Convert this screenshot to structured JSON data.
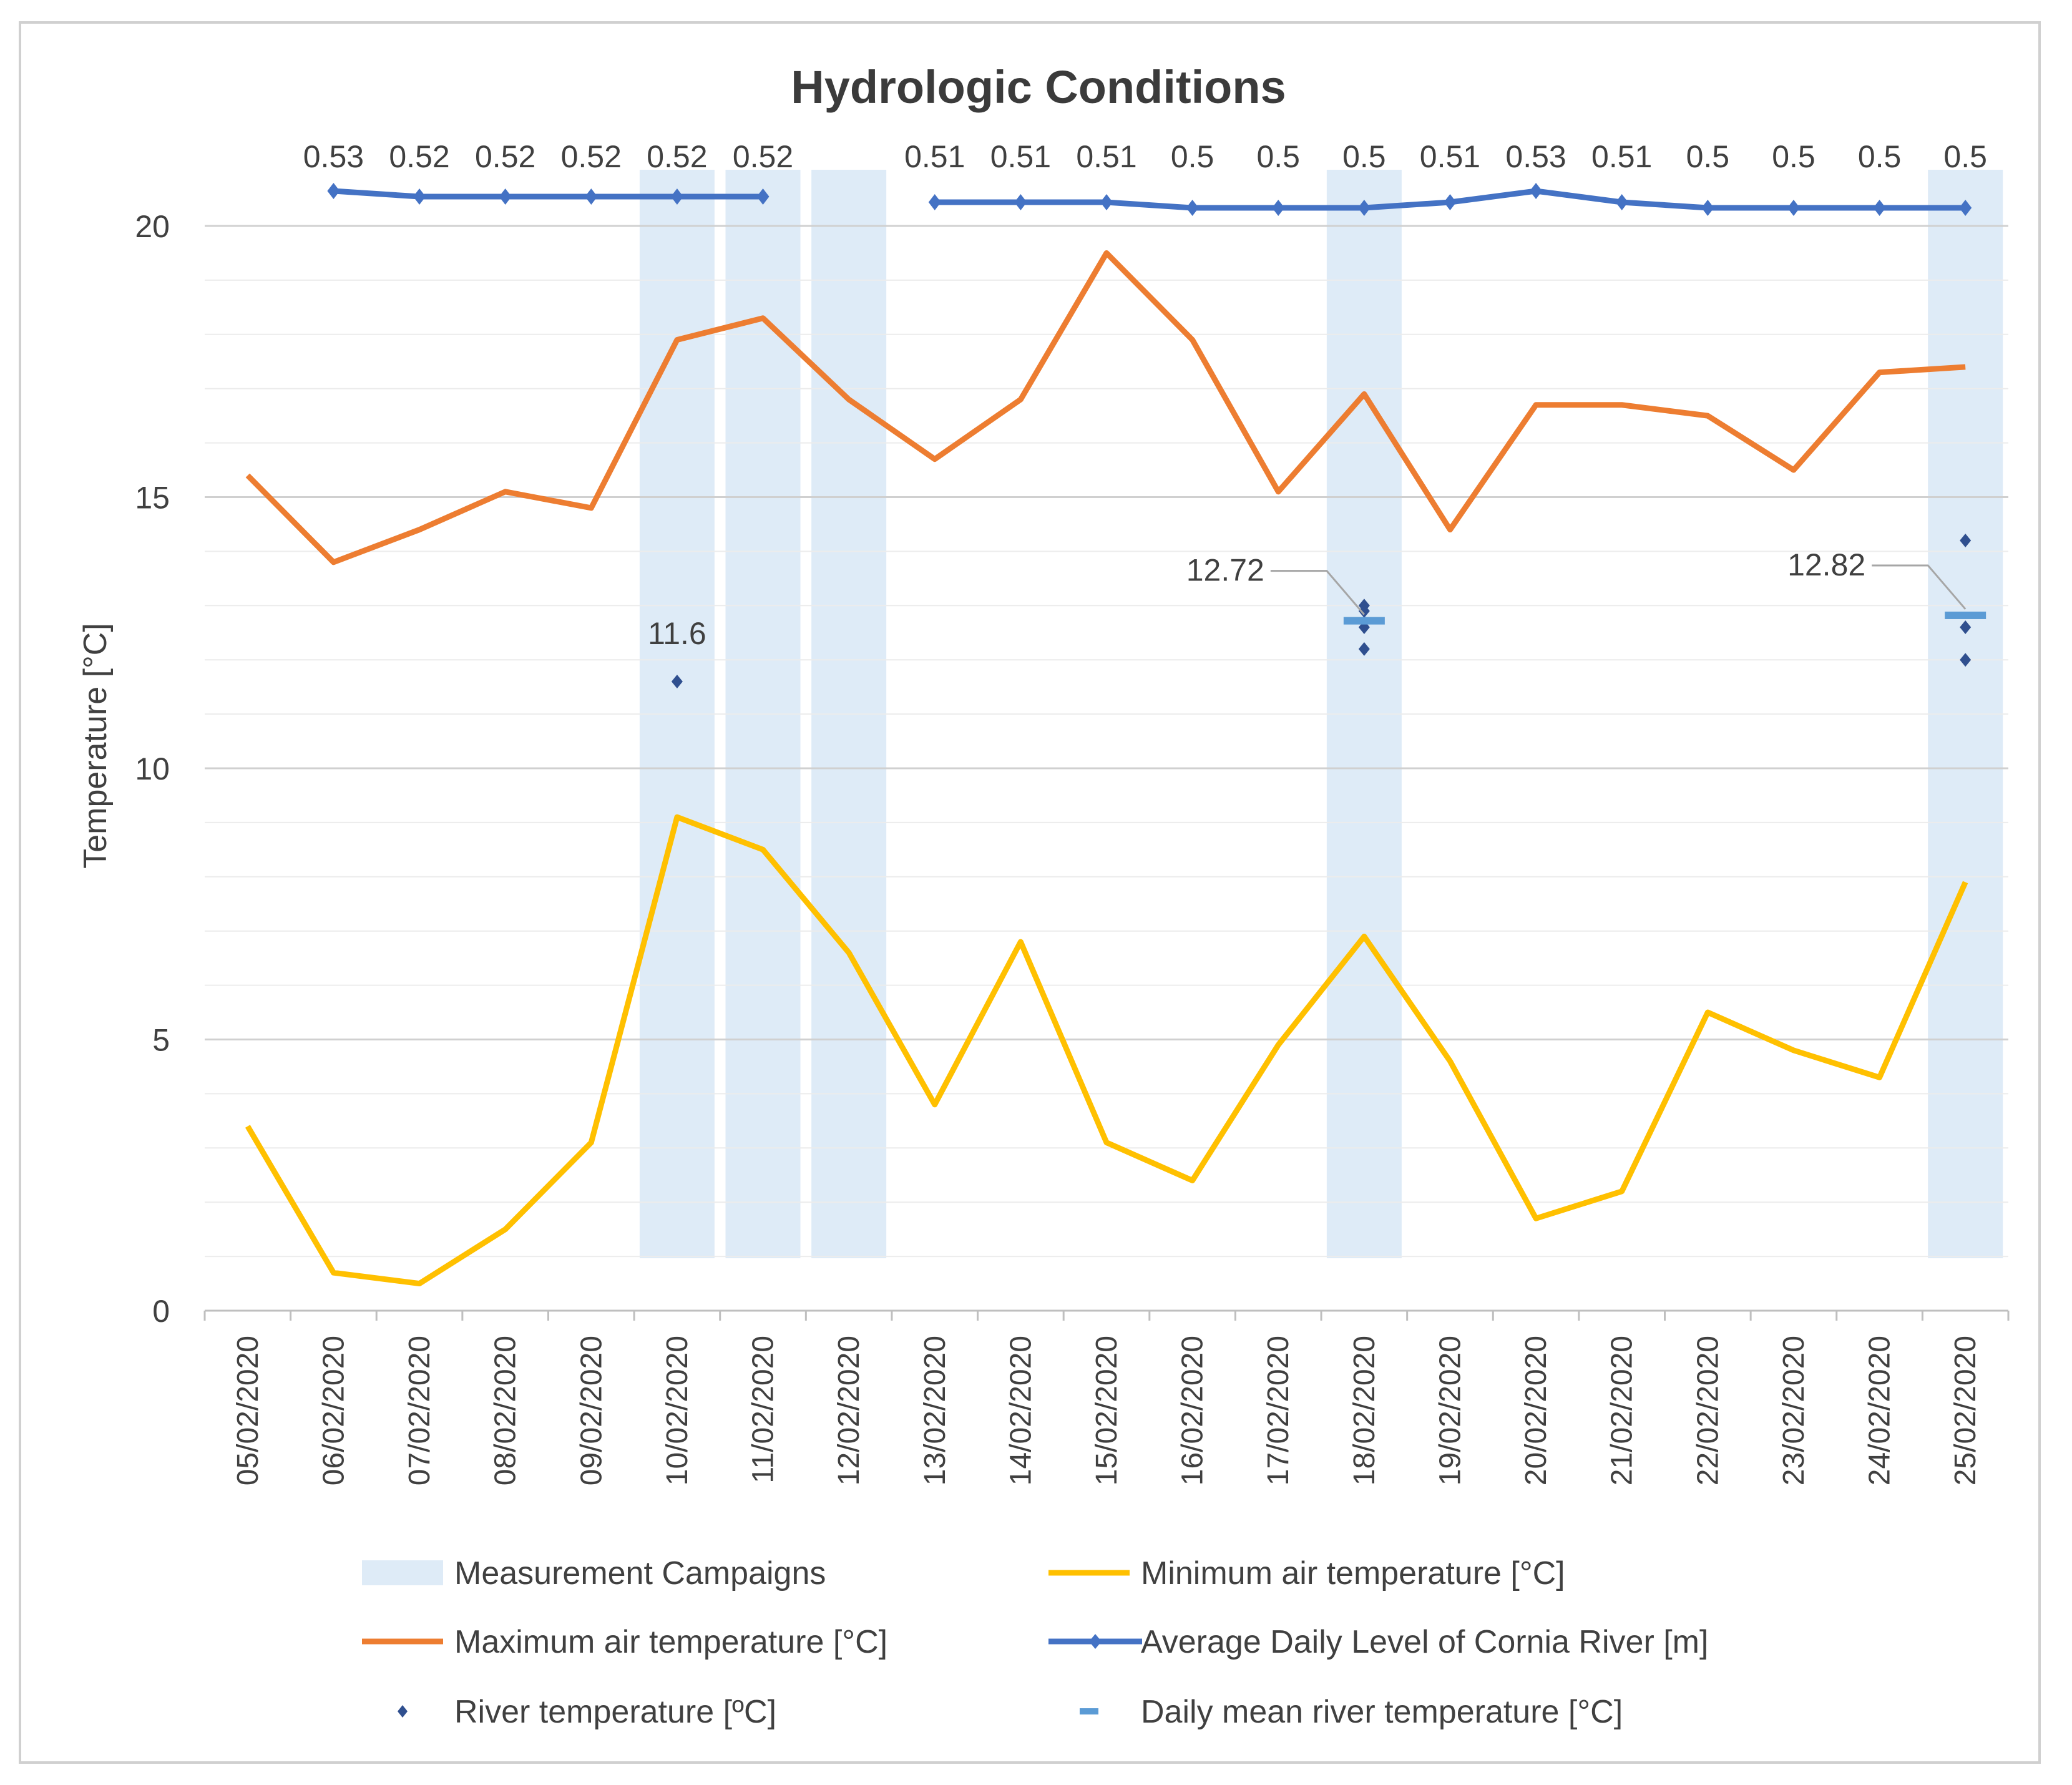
{
  "chart_data": {
    "type": "line",
    "title": "Hydrologic Conditions",
    "xlabel": "",
    "ylabel": "Temperature [°C]",
    "ylim": [
      0,
      20
    ],
    "yticks": [
      "0",
      "5",
      "10",
      "15",
      "20"
    ],
    "categories": [
      "05/02/2020",
      "06/02/2020",
      "07/02/2020",
      "08/02/2020",
      "09/02/2020",
      "10/02/2020",
      "11/02/2020",
      "12/02/2020",
      "13/02/2020",
      "14/02/2020",
      "15/02/2020",
      "16/02/2020",
      "17/02/2020",
      "18/02/2020",
      "19/02/2020",
      "20/02/2020",
      "21/02/2020",
      "22/02/2020",
      "23/02/2020",
      "24/02/2020",
      "25/02/2020"
    ],
    "measurement_campaigns": [
      "10/02/2020",
      "11/02/2020",
      "12/02/2020",
      "18/02/2020",
      "25/02/2020"
    ],
    "series": [
      {
        "name": "Maximum air temperature [°C]",
        "color": "#ED7D31",
        "values": [
          15.4,
          13.8,
          14.4,
          15.1,
          14.8,
          17.9,
          18.3,
          16.8,
          15.7,
          16.8,
          19.5,
          17.9,
          15.1,
          16.9,
          14.4,
          16.7,
          16.7,
          16.5,
          15.5,
          17.3,
          17.4
        ]
      },
      {
        "name": "Minimum air temperature [°C]",
        "color": "#FFC000",
        "values": [
          3.4,
          0.7,
          0.5,
          1.5,
          3.1,
          9.1,
          8.5,
          6.6,
          3.8,
          6.8,
          3.1,
          2.4,
          4.9,
          6.9,
          4.6,
          1.7,
          2.2,
          5.5,
          4.8,
          4.3,
          7.9
        ]
      },
      {
        "name": "Average Daily Level of Cornia River [m]",
        "color": "#4472C4",
        "values": [
          null,
          0.53,
          0.52,
          0.52,
          0.52,
          0.52,
          0.52,
          null,
          0.51,
          0.51,
          0.51,
          0.5,
          0.5,
          0.5,
          0.51,
          0.53,
          0.51,
          0.5,
          0.5,
          0.5,
          0.5
        ],
        "labels": [
          "",
          "0.53",
          "0.52",
          "0.52",
          "0.52",
          "0.52",
          "0.52",
          "",
          "0.51",
          "0.51",
          "0.51",
          "0.5",
          "0.5",
          "0.5",
          "0.51",
          "0.53",
          "0.51",
          "0.5",
          "0.5",
          "0.5",
          "0.5"
        ]
      },
      {
        "name": "River temperature [ºC]",
        "color": "#2F4F8F",
        "points": [
          {
            "x": "10/02/2020",
            "y": 11.6
          },
          {
            "x": "18/02/2020",
            "y": 13.0
          },
          {
            "x": "18/02/2020",
            "y": 12.9
          },
          {
            "x": "18/02/2020",
            "y": 12.6
          },
          {
            "x": "18/02/2020",
            "y": 12.2
          },
          {
            "x": "25/02/2020",
            "y": 14.2
          },
          {
            "x": "25/02/2020",
            "y": 12.6
          },
          {
            "x": "25/02/2020",
            "y": 12.0
          }
        ]
      },
      {
        "name": "Daily mean river temperature [°C]",
        "color": "#5B9BD5",
        "points": [
          {
            "x": "10/02/2020",
            "y": 11.6,
            "label": "11.6"
          },
          {
            "x": "18/02/2020",
            "y": 12.72,
            "label": "12.72"
          },
          {
            "x": "25/02/2020",
            "y": 12.82,
            "label": "12.82"
          }
        ]
      }
    ],
    "legend": [
      {
        "key": "campaign",
        "label": "Measurement Campaigns",
        "color": "#DEEBF7"
      },
      {
        "key": "min",
        "label": "Minimum air temperature [°C]",
        "color": "#FFC000"
      },
      {
        "key": "max",
        "label": "Maximum air temperature [°C]",
        "color": "#ED7D31"
      },
      {
        "key": "level",
        "label": "Average Daily Level of Cornia River [m]",
        "color": "#4472C4"
      },
      {
        "key": "river",
        "label": "River temperature [ºC]",
        "color": "#2F4F8F"
      },
      {
        "key": "mean",
        "label": "Daily mean river temperature [°C]",
        "color": "#5B9BD5"
      }
    ],
    "legend_position": "bottom",
    "grid": true
  }
}
